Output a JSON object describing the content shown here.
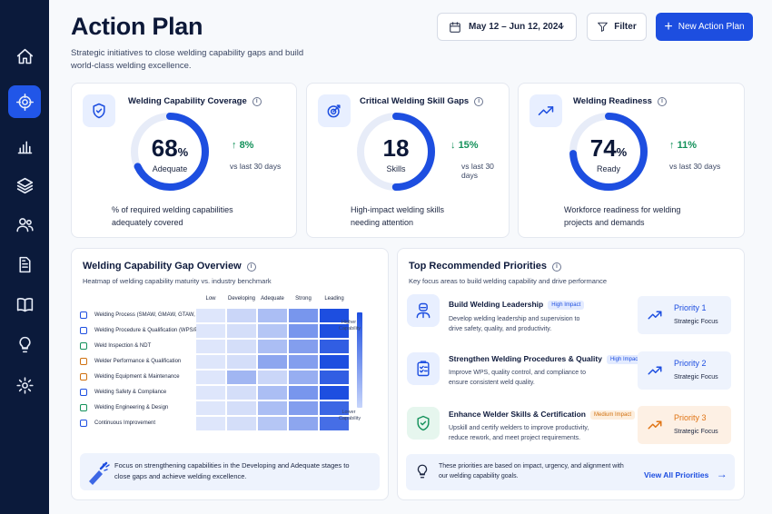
{
  "header": {
    "title": "Action Plan",
    "subtitle": "Strategic initiatives to close welding capability gaps and build world-class welding excellence.",
    "date_range": "May 12 – Jun 12, 2024",
    "filter_label": "Filter",
    "new_button_label": "New Action Plan"
  },
  "sidebar": {
    "items": [
      {
        "icon": "home-icon"
      },
      {
        "icon": "target-icon",
        "active": true
      },
      {
        "icon": "bar-chart-icon"
      },
      {
        "icon": "layers-icon"
      },
      {
        "icon": "users-icon"
      },
      {
        "icon": "document-icon"
      },
      {
        "icon": "book-icon"
      },
      {
        "icon": "lightbulb-icon"
      },
      {
        "icon": "settings-icon"
      }
    ]
  },
  "kpis": [
    {
      "title": "Welding Capability Coverage",
      "value": "68",
      "unit": "%",
      "label": "Adequate",
      "fraction": 0.68,
      "delta": "8%",
      "direction": "up",
      "delta_sub": "vs last 30 days",
      "desc": "% of required welding capabilities adequately covered",
      "ring_color": "#1d4ee0",
      "delta_color": "#13915a"
    },
    {
      "title": "Critical Welding Skill Gaps",
      "value": "18",
      "unit": "",
      "label": "Skills",
      "fraction": 0.5,
      "delta": "15%",
      "direction": "down",
      "delta_sub": "vs last 30 days",
      "desc": "High-impact welding skills needing attention",
      "ring_color": "#1d4ee0",
      "delta_color": "#13915a"
    },
    {
      "title": "Welding Readiness",
      "value": "74",
      "unit": "%",
      "label": "Ready",
      "fraction": 0.74,
      "delta": "11%",
      "direction": "up",
      "delta_sub": "vs last 30 days",
      "desc": "Workforce readiness for welding projects and demands",
      "ring_color": "#1d4ee0",
      "delta_color": "#13915a"
    }
  ],
  "heatmap": {
    "title": "Welding Capability Gap Overview",
    "subtitle": "Heatmap of welding capability maturity vs. industry benchmark",
    "columns": [
      "Low",
      "Developing",
      "Adequate",
      "Strong",
      "Leading"
    ],
    "rows": [
      {
        "label": "Welding Process (SMAW, GMAW, GTAW, etc.)",
        "color": "#1d4ee0",
        "levels": [
          0.05,
          0.15,
          0.3,
          0.55,
          1.0
        ]
      },
      {
        "label": "Welding Procedure & Qualification (WPS/PQR)",
        "color": "#1d4ee0",
        "levels": [
          0.05,
          0.1,
          0.25,
          0.55,
          1.0
        ]
      },
      {
        "label": "Weld Inspection & NDT",
        "color": "#13915a",
        "levels": [
          0.05,
          0.1,
          0.3,
          0.5,
          0.9
        ]
      },
      {
        "label": "Welder Performance & Qualification",
        "color": "#d0700f",
        "levels": [
          0.05,
          0.1,
          0.45,
          0.5,
          1.0
        ]
      },
      {
        "label": "Welding Equipment & Maintenance",
        "color": "#d0700f",
        "levels": [
          0.05,
          0.35,
          0.15,
          0.4,
          0.9
        ]
      },
      {
        "label": "Welding Safety & Compliance",
        "color": "#1d4ee0",
        "levels": [
          0.05,
          0.1,
          0.3,
          0.55,
          1.0
        ]
      },
      {
        "label": "Welding Engineering & Design",
        "color": "#13915a",
        "levels": [
          0.05,
          0.1,
          0.3,
          0.5,
          0.85
        ]
      },
      {
        "label": "Continuous Improvement",
        "color": "#1d4ee0",
        "levels": [
          0.05,
          0.1,
          0.25,
          0.45,
          0.8
        ]
      }
    ],
    "legend_high": "Higher Capability",
    "legend_low": "Lower Capability",
    "callout": "Focus on strengthening capabilities in the Developing and Adequate stages to close gaps and achieve welding excellence."
  },
  "priorities": {
    "title": "Top Recommended Priorities",
    "subtitle": "Key focus areas to build welding capability and drive performance",
    "items": [
      {
        "title": "Build Welding Leadership",
        "badge": "High Impact",
        "badge_type": "high",
        "desc": "Develop welding leadership and supervision to drive safety, quality, and productivity.",
        "priority": "Priority 1",
        "focus": "Strategic Focus",
        "accent": "#1d4ee0",
        "icon": "welder-icon"
      },
      {
        "title": "Strengthen Welding Procedures & Quality",
        "badge": "High Impact",
        "badge_type": "high",
        "desc": "Improve WPS, quality control, and compliance to ensure consistent weld quality.",
        "priority": "Priority 2",
        "focus": "Strategic Focus",
        "accent": "#1d4ee0",
        "icon": "clipboard-icon"
      },
      {
        "title": "Enhance Welder Skills & Certification",
        "badge": "Medium Impact",
        "badge_type": "med",
        "desc": "Upskill and certify welders to improve productivity, reduce rework, and meet project requirements.",
        "priority": "Priority 3",
        "focus": "Strategic Focus",
        "accent": "#e07414",
        "icon": "shield-check-icon"
      }
    ],
    "footer_text": "These priorities are based on impact, urgency, and alignment with our welding capability goals.",
    "view_all": "View All Priorities"
  }
}
